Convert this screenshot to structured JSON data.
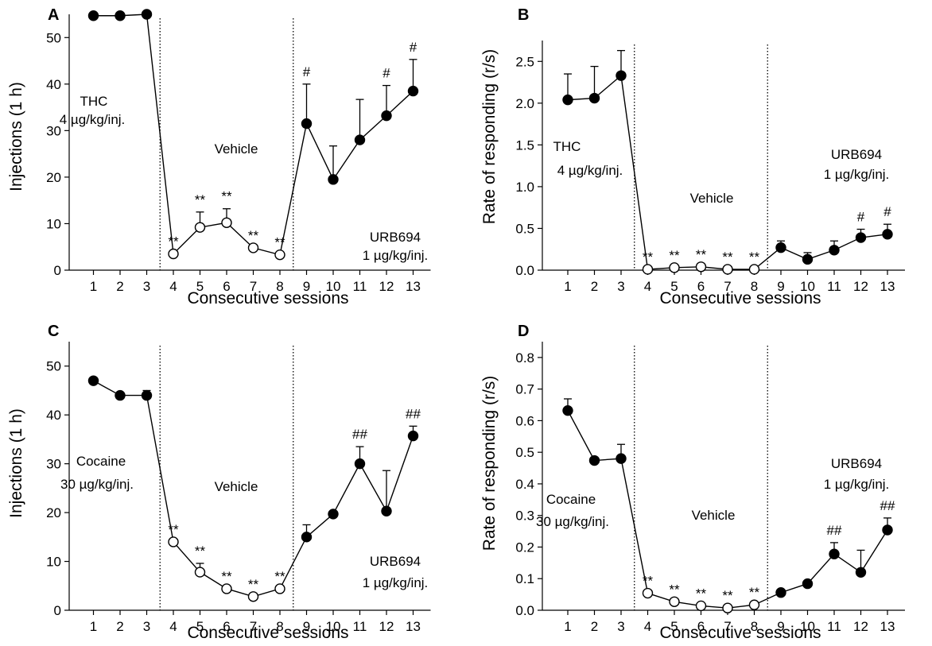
{
  "chart_data": [
    {
      "type": "line",
      "panel": "A",
      "xlabel": "Consecutive sessions",
      "ylabel": "Injections (1 h)",
      "x": [
        1,
        2,
        3,
        4,
        5,
        6,
        7,
        8,
        9,
        10,
        11,
        12,
        13
      ],
      "xticks": [
        "1",
        "2",
        "3",
        "4",
        "5",
        "6",
        "7",
        "8",
        "9",
        "10",
        "11",
        "12",
        "13"
      ],
      "ylim": [
        0,
        55
      ],
      "yticks": [
        "0",
        "10",
        "20",
        "30",
        "40",
        "50"
      ],
      "ytick_values": [
        0,
        10,
        20,
        30,
        40,
        50
      ],
      "values": [
        54.7,
        54.7,
        55.0,
        3.5,
        9.2,
        10.2,
        4.8,
        3.3,
        31.5,
        19.5,
        28.0,
        33.2,
        38.5
      ],
      "errors": [
        0,
        0,
        0,
        0,
        3.3,
        3.0,
        0,
        0,
        8.5,
        7.2,
        8.7,
        6.5,
        6.8
      ],
      "filled": [
        true,
        true,
        true,
        false,
        false,
        false,
        false,
        false,
        true,
        true,
        true,
        true,
        true
      ],
      "markers": [
        "",
        "",
        "",
        "**",
        "**",
        "**",
        "**",
        "**",
        "#",
        "",
        "",
        "#",
        "#"
      ],
      "annotations": [
        {
          "lines": [
            "THC",
            "4 µg/kg/inj."
          ]
        },
        {
          "lines": [
            "Vehicle"
          ]
        },
        {
          "lines": [
            "URB694",
            "1 µg/kg/inj."
          ]
        }
      ],
      "phase_dividers": [
        3.5,
        8.5
      ]
    },
    {
      "type": "line",
      "panel": "B",
      "xlabel": "Consecutive sessions",
      "ylabel": "Rate of responding (r/s)",
      "x": [
        1,
        2,
        3,
        4,
        5,
        6,
        7,
        8,
        9,
        10,
        11,
        12,
        13
      ],
      "xticks": [
        "1",
        "2",
        "3",
        "4",
        "5",
        "6",
        "7",
        "8",
        "9",
        "10",
        "11",
        "12",
        "13"
      ],
      "ylim": [
        0,
        2.75
      ],
      "yticks": [
        "0.0",
        "0.5",
        "1.0",
        "1.5",
        "2.0",
        "2.5"
      ],
      "ytick_values": [
        0,
        0.5,
        1.0,
        1.5,
        2.0,
        2.5
      ],
      "values": [
        2.04,
        2.06,
        2.33,
        0.01,
        0.03,
        0.04,
        0.01,
        0.01,
        0.27,
        0.13,
        0.24,
        0.39,
        0.43
      ],
      "errors": [
        0.31,
        0.38,
        0.3,
        0,
        0,
        0,
        0,
        0,
        0.08,
        0.08,
        0.11,
        0.1,
        0.12
      ],
      "filled": [
        true,
        true,
        true,
        false,
        false,
        false,
        false,
        false,
        true,
        true,
        true,
        true,
        true
      ],
      "markers": [
        "",
        "",
        "",
        "**",
        "**",
        "**",
        "**",
        "**",
        "",
        "",
        "",
        "#",
        "#"
      ],
      "annotations": [
        {
          "lines": [
            "THC",
            "4 µg/kg/inj."
          ]
        },
        {
          "lines": [
            "Vehicle"
          ]
        },
        {
          "lines": [
            "URB694",
            "1 µg/kg/inj."
          ]
        }
      ],
      "phase_dividers": [
        3.5,
        8.5
      ]
    },
    {
      "type": "line",
      "panel": "C",
      "xlabel": "Consecutive sessions",
      "ylabel": "Injections (1 h)",
      "x": [
        1,
        2,
        3,
        4,
        5,
        6,
        7,
        8,
        9,
        10,
        11,
        12,
        13
      ],
      "xticks": [
        "1",
        "2",
        "3",
        "4",
        "5",
        "6",
        "7",
        "8",
        "9",
        "10",
        "11",
        "12",
        "13"
      ],
      "ylim": [
        0,
        55
      ],
      "yticks": [
        "0",
        "10",
        "20",
        "30",
        "40",
        "50"
      ],
      "ytick_values": [
        0,
        10,
        20,
        30,
        40,
        50
      ],
      "values": [
        47.0,
        44.0,
        44.0,
        14.0,
        7.8,
        4.4,
        2.8,
        4.4,
        15.0,
        19.7,
        30.0,
        20.3,
        35.7
      ],
      "errors": [
        0,
        0,
        1.0,
        0,
        1.8,
        0,
        0,
        0,
        2.5,
        0,
        3.5,
        8.3,
        2.0
      ],
      "filled": [
        true,
        true,
        true,
        false,
        false,
        false,
        false,
        false,
        true,
        true,
        true,
        true,
        true
      ],
      "markers": [
        "",
        "",
        "",
        "**",
        "**",
        "**",
        "**",
        "**",
        "",
        "",
        "##",
        "",
        "##"
      ],
      "annotations": [
        {
          "lines": [
            "Cocaine",
            "30 µg/kg/inj."
          ]
        },
        {
          "lines": [
            "Vehicle"
          ]
        },
        {
          "lines": [
            "URB694",
            "1 µg/kg/inj."
          ]
        }
      ],
      "phase_dividers": [
        3.5,
        8.5
      ]
    },
    {
      "type": "line",
      "panel": "D",
      "xlabel": "Consecutive sessions",
      "ylabel": "Rate of responding (r/s)",
      "x": [
        1,
        2,
        3,
        4,
        5,
        6,
        7,
        8,
        9,
        10,
        11,
        12,
        13
      ],
      "xticks": [
        "1",
        "2",
        "3",
        "4",
        "5",
        "6",
        "7",
        "8",
        "9",
        "10",
        "11",
        "12",
        "13"
      ],
      "ylim": [
        0,
        0.85
      ],
      "yticks": [
        "0.0",
        "0.1",
        "0.2",
        "0.3",
        "0.4",
        "0.5",
        "0.6",
        "0.7",
        "0.8"
      ],
      "ytick_values": [
        0,
        0.1,
        0.2,
        0.3,
        0.4,
        0.5,
        0.6,
        0.7,
        0.8
      ],
      "values": [
        0.632,
        0.474,
        0.48,
        0.054,
        0.027,
        0.014,
        0.007,
        0.017,
        0.056,
        0.084,
        0.178,
        0.12,
        0.254
      ],
      "errors": [
        0.037,
        0,
        0.045,
        0,
        0,
        0,
        0,
        0,
        0,
        0,
        0.036,
        0.07,
        0.038
      ],
      "filled": [
        true,
        true,
        true,
        false,
        false,
        false,
        false,
        false,
        true,
        true,
        true,
        true,
        true
      ],
      "markers": [
        "",
        "",
        "",
        "**",
        "**",
        "**",
        "**",
        "**",
        "",
        "",
        "##",
        "",
        "##"
      ],
      "annotations": [
        {
          "lines": [
            "Cocaine",
            "30 µg/kg/inj."
          ]
        },
        {
          "lines": [
            "Vehicle"
          ]
        },
        {
          "lines": [
            "URB694",
            "1 µg/kg/inj."
          ]
        }
      ],
      "phase_dividers": [
        3.5,
        8.5
      ]
    }
  ]
}
